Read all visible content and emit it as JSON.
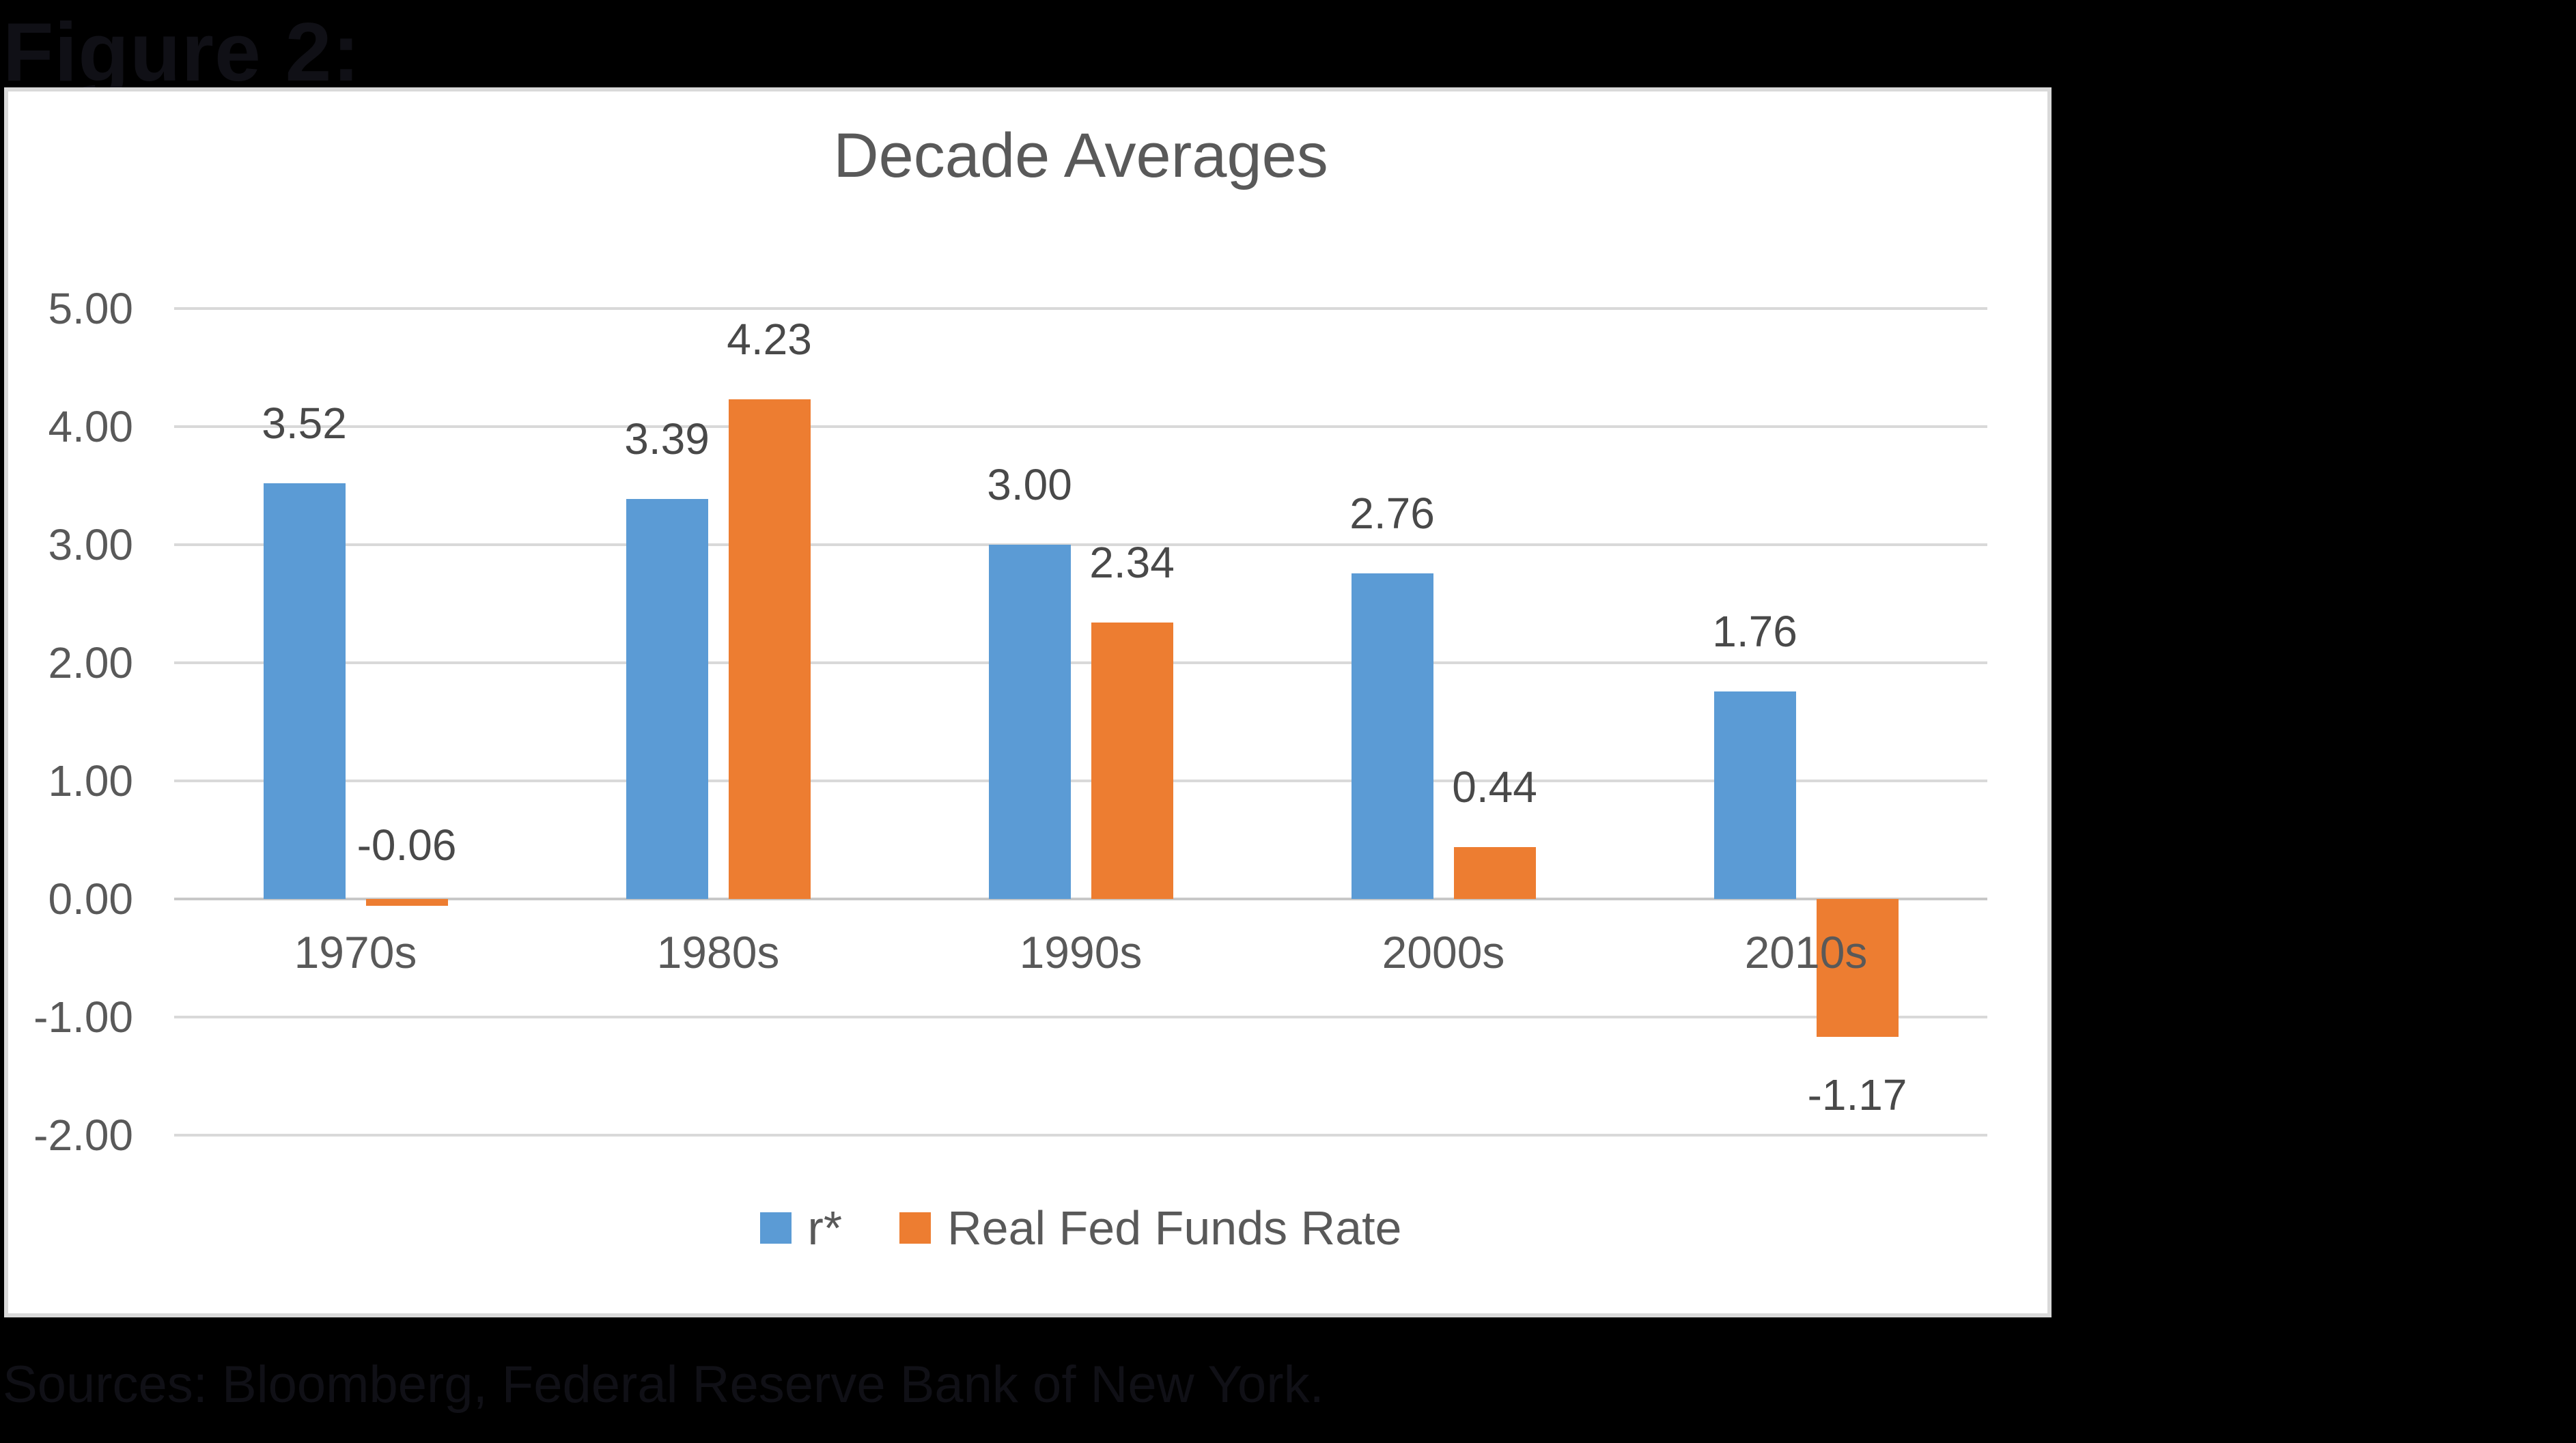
{
  "page": {
    "figure_label": "Figure 2:",
    "sources_note": "Sources: Bloomberg, Federal Reserve Bank of New York.",
    "background_color": "#000000",
    "note_text_color": "#101016"
  },
  "chart_data": {
    "type": "bar",
    "title": "Decade Averages",
    "title_color": "#595959",
    "categories": [
      "1970s",
      "1980s",
      "1990s",
      "2000s",
      "2010s"
    ],
    "series": [
      {
        "name": "r*",
        "color": "#5B9BD5",
        "values": [
          3.52,
          3.39,
          3.0,
          2.76,
          1.76
        ],
        "labels": [
          "3.52",
          "3.39",
          "3.00",
          "2.76",
          "1.76"
        ]
      },
      {
        "name": "Real Fed Funds Rate",
        "color": "#ED7D31",
        "values": [
          -0.06,
          4.23,
          2.34,
          0.44,
          -1.17
        ],
        "labels": [
          "-0.06",
          "4.23",
          "2.34",
          "0.44",
          "-1.17"
        ]
      }
    ],
    "xlabel": "",
    "ylabel": "",
    "ylim": [
      -2,
      5
    ],
    "y_tick_step": 1,
    "y_tick_labels": [
      "5.00",
      "4.00",
      "3.00",
      "2.00",
      "1.00",
      "0.00",
      "-1.00",
      "-2.00"
    ],
    "grid": true,
    "gridline_color": "#D9D9D9",
    "legend_position": "bottom",
    "plot_background": "#ffffff"
  }
}
